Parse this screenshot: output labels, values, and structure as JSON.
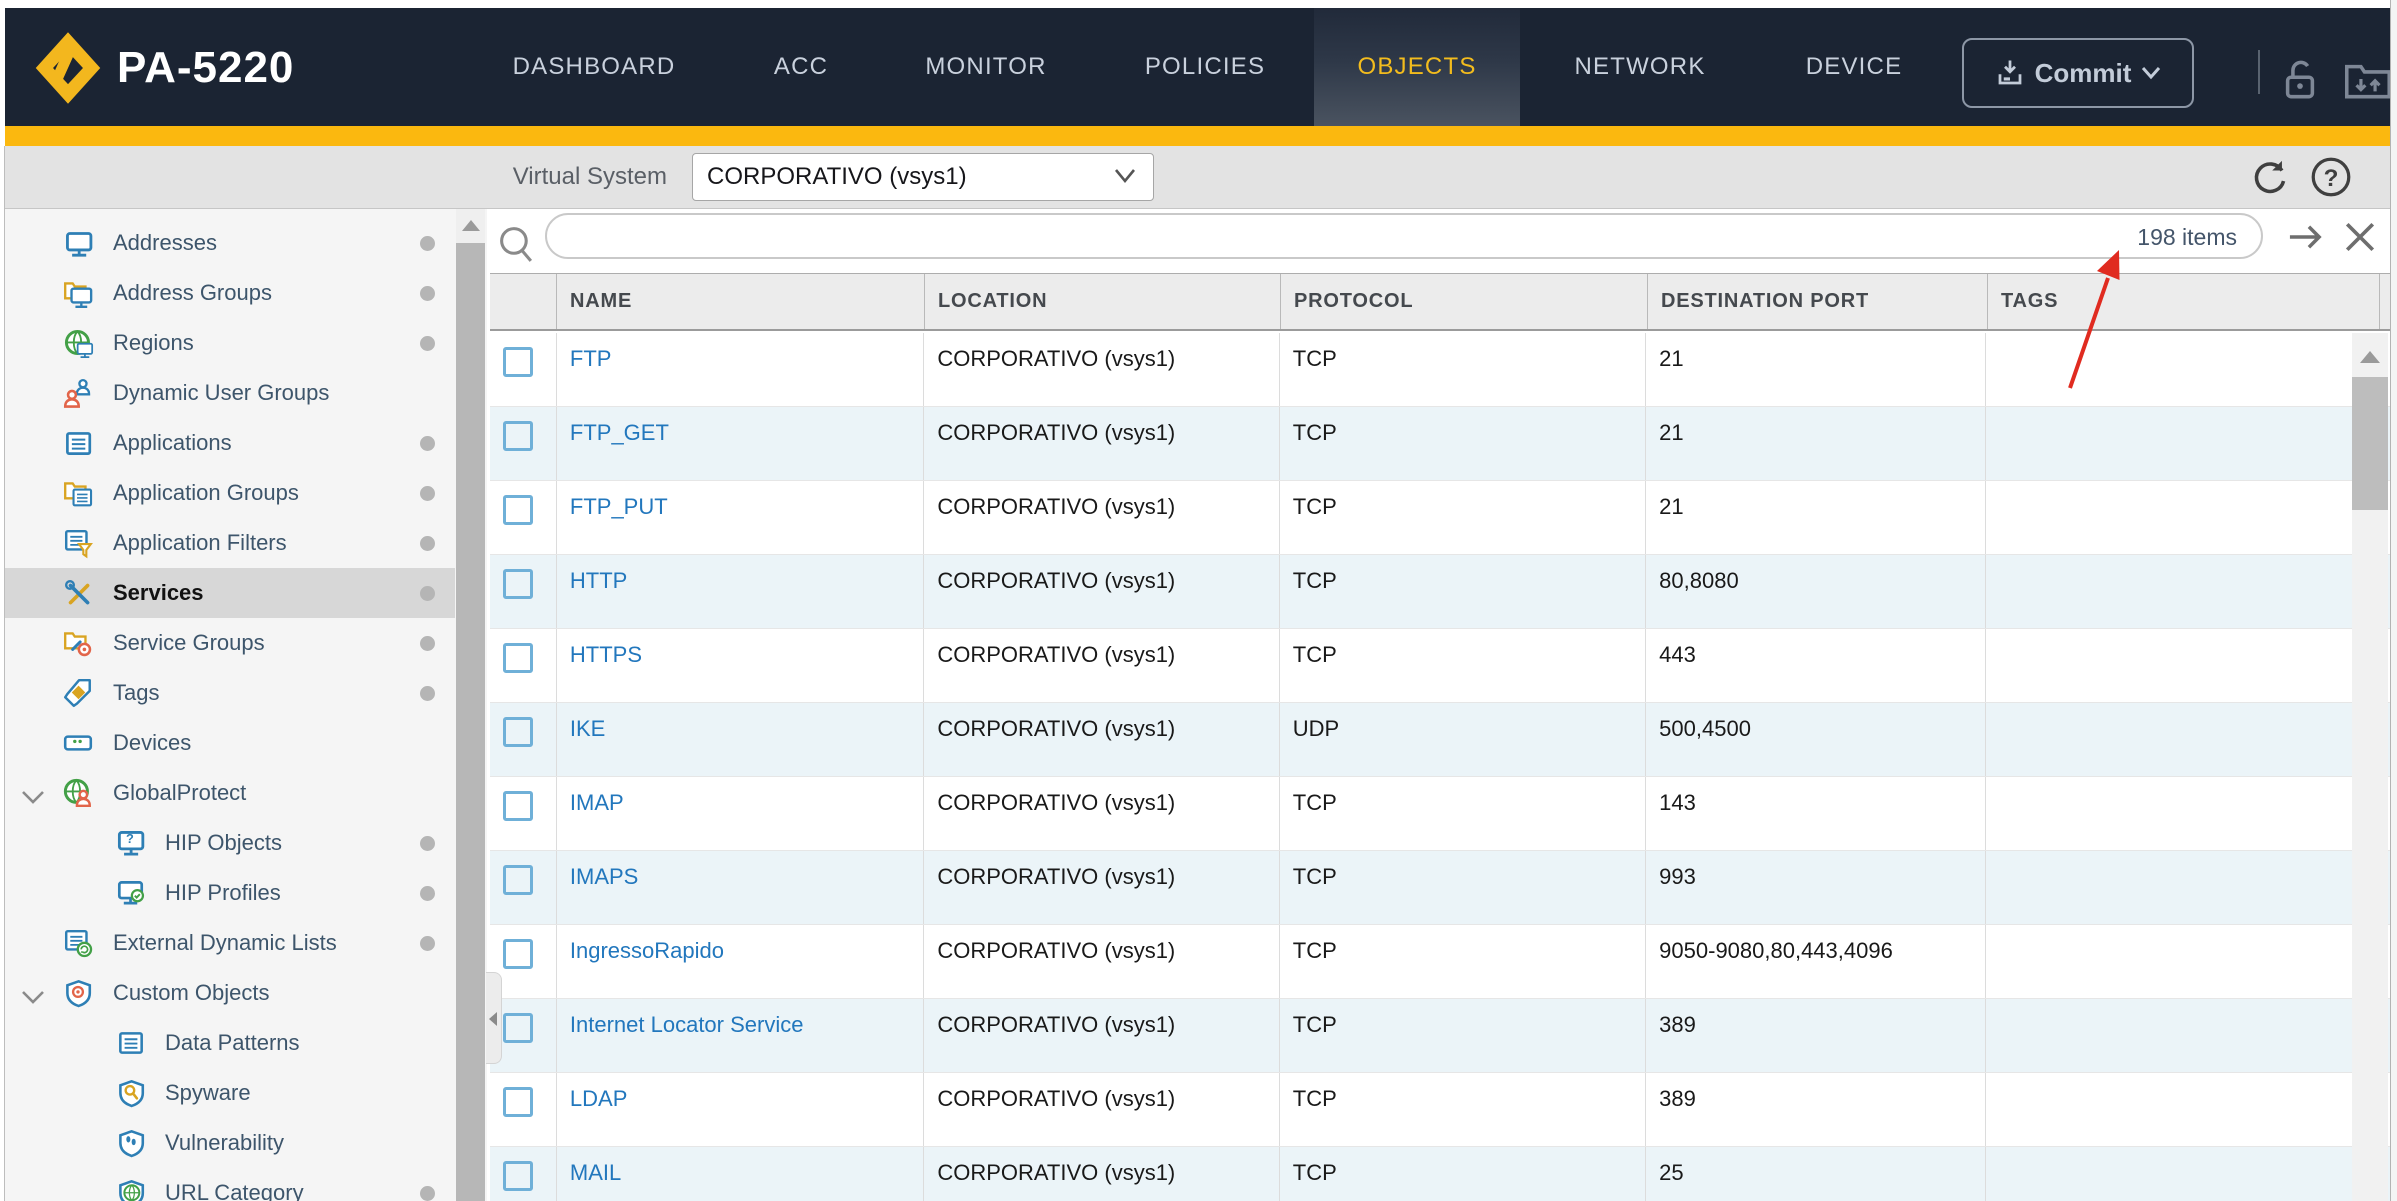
{
  "nav": {
    "brand": "PA-5220",
    "tabs": [
      {
        "label": "DASHBOARD",
        "active": false
      },
      {
        "label": "ACC",
        "active": false
      },
      {
        "label": "MONITOR",
        "active": false
      },
      {
        "label": "POLICIES",
        "active": false
      },
      {
        "label": "OBJECTS",
        "active": true
      },
      {
        "label": "NETWORK",
        "active": false
      },
      {
        "label": "DEVICE",
        "active": false
      }
    ],
    "commit_label": "Commit"
  },
  "toolbar": {
    "virtual_system_label": "Virtual System",
    "virtual_system_value": "CORPORATIVO (vsys1)"
  },
  "search": {
    "value": "",
    "items_count": "198 items"
  },
  "sidebar": {
    "items": [
      {
        "label": "Addresses",
        "icon": "addresses-icon",
        "dot": true,
        "indent": false,
        "expandable": false,
        "selected": false
      },
      {
        "label": "Address Groups",
        "icon": "address-groups-icon",
        "dot": true,
        "indent": false,
        "expandable": false,
        "selected": false
      },
      {
        "label": "Regions",
        "icon": "regions-icon",
        "dot": true,
        "indent": false,
        "expandable": false,
        "selected": false
      },
      {
        "label": "Dynamic User Groups",
        "icon": "dynamic-user-groups-icon",
        "dot": false,
        "indent": false,
        "expandable": false,
        "selected": false
      },
      {
        "label": "Applications",
        "icon": "applications-icon",
        "dot": true,
        "indent": false,
        "expandable": false,
        "selected": false
      },
      {
        "label": "Application Groups",
        "icon": "application-groups-icon",
        "dot": true,
        "indent": false,
        "expandable": false,
        "selected": false
      },
      {
        "label": "Application Filters",
        "icon": "application-filters-icon",
        "dot": true,
        "indent": false,
        "expandable": false,
        "selected": false
      },
      {
        "label": "Services",
        "icon": "services-icon",
        "dot": true,
        "indent": false,
        "expandable": false,
        "selected": true
      },
      {
        "label": "Service Groups",
        "icon": "service-groups-icon",
        "dot": true,
        "indent": false,
        "expandable": false,
        "selected": false
      },
      {
        "label": "Tags",
        "icon": "tags-icon",
        "dot": true,
        "indent": false,
        "expandable": false,
        "selected": false
      },
      {
        "label": "Devices",
        "icon": "devices-icon",
        "dot": false,
        "indent": false,
        "expandable": false,
        "selected": false
      },
      {
        "label": "GlobalProtect",
        "icon": "globalprotect-icon",
        "dot": false,
        "indent": false,
        "expandable": true,
        "selected": false
      },
      {
        "label": "HIP Objects",
        "icon": "hip-objects-icon",
        "dot": true,
        "indent": true,
        "expandable": false,
        "selected": false
      },
      {
        "label": "HIP Profiles",
        "icon": "hip-profiles-icon",
        "dot": true,
        "indent": true,
        "expandable": false,
        "selected": false
      },
      {
        "label": "External Dynamic Lists",
        "icon": "external-dynamic-lists-icon",
        "dot": true,
        "indent": false,
        "expandable": false,
        "selected": false
      },
      {
        "label": "Custom Objects",
        "icon": "custom-objects-icon",
        "dot": false,
        "indent": false,
        "expandable": true,
        "selected": false
      },
      {
        "label": "Data Patterns",
        "icon": "data-patterns-icon",
        "dot": false,
        "indent": true,
        "expandable": false,
        "selected": false
      },
      {
        "label": "Spyware",
        "icon": "spyware-icon",
        "dot": false,
        "indent": true,
        "expandable": false,
        "selected": false
      },
      {
        "label": "Vulnerability",
        "icon": "vulnerability-icon",
        "dot": false,
        "indent": true,
        "expandable": false,
        "selected": false
      },
      {
        "label": "URL Category",
        "icon": "url-category-icon",
        "dot": true,
        "indent": true,
        "expandable": false,
        "selected": false
      }
    ]
  },
  "table": {
    "columns": [
      "NAME",
      "LOCATION",
      "PROTOCOL",
      "DESTINATION PORT",
      "TAGS"
    ],
    "rows": [
      {
        "name": "FTP",
        "location": "CORPORATIVO (vsys1)",
        "protocol": "TCP",
        "port": "21",
        "tags": ""
      },
      {
        "name": "FTP_GET",
        "location": "CORPORATIVO (vsys1)",
        "protocol": "TCP",
        "port": "21",
        "tags": ""
      },
      {
        "name": "FTP_PUT",
        "location": "CORPORATIVO (vsys1)",
        "protocol": "TCP",
        "port": "21",
        "tags": ""
      },
      {
        "name": "HTTP",
        "location": "CORPORATIVO (vsys1)",
        "protocol": "TCP",
        "port": "80,8080",
        "tags": ""
      },
      {
        "name": "HTTPS",
        "location": "CORPORATIVO (vsys1)",
        "protocol": "TCP",
        "port": "443",
        "tags": ""
      },
      {
        "name": "IKE",
        "location": "CORPORATIVO (vsys1)",
        "protocol": "UDP",
        "port": "500,4500",
        "tags": ""
      },
      {
        "name": "IMAP",
        "location": "CORPORATIVO (vsys1)",
        "protocol": "TCP",
        "port": "143",
        "tags": ""
      },
      {
        "name": "IMAPS",
        "location": "CORPORATIVO (vsys1)",
        "protocol": "TCP",
        "port": "993",
        "tags": ""
      },
      {
        "name": "IngressoRapido",
        "location": "CORPORATIVO (vsys1)",
        "protocol": "TCP",
        "port": "9050-9080,80,443,4096",
        "tags": ""
      },
      {
        "name": "Internet Locator Service",
        "location": "CORPORATIVO (vsys1)",
        "protocol": "TCP",
        "port": "389",
        "tags": ""
      },
      {
        "name": "LDAP",
        "location": "CORPORATIVO (vsys1)",
        "protocol": "TCP",
        "port": "389",
        "tags": ""
      },
      {
        "name": "MAIL",
        "location": "CORPORATIVO (vsys1)",
        "protocol": "TCP",
        "port": "25",
        "tags": ""
      }
    ]
  },
  "colors": {
    "accent_yellow": "#fbb80f",
    "nav_dark": "#1b2433",
    "link_blue": "#2277bd",
    "annotation_red": "#e02b20"
  }
}
